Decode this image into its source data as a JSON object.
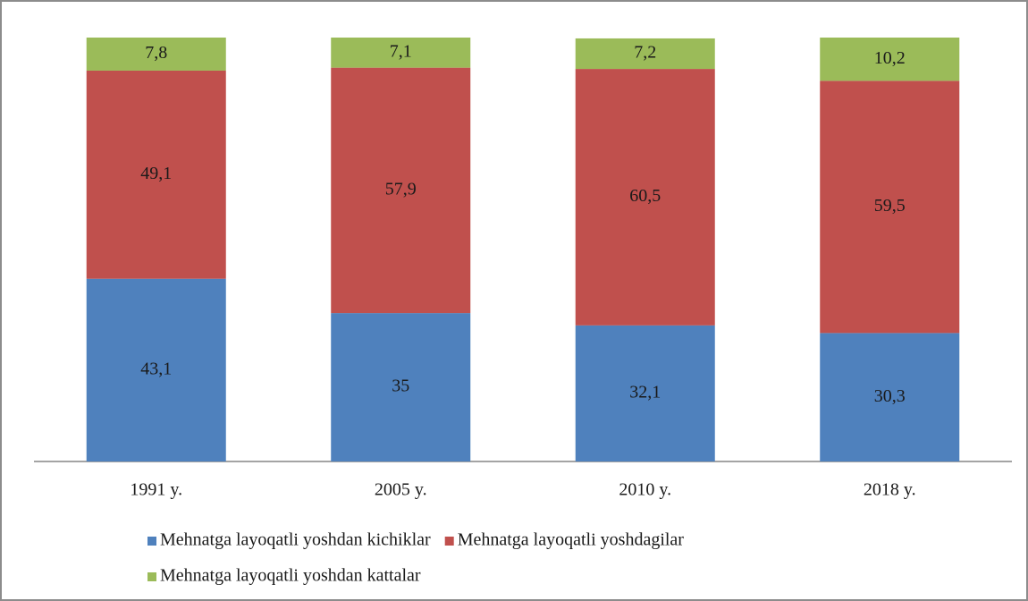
{
  "chart_data": {
    "type": "stacked_bar",
    "categories": [
      "1991 y.",
      "2005 y.",
      "2010 y.",
      "2018 y."
    ],
    "series": [
      {
        "name": "Mehnatga layoqatli yoshdan kichiklar",
        "color": "#4f81bd",
        "values": [
          43.1,
          35,
          32.1,
          30.3
        ],
        "value_labels": [
          "43,1",
          "35",
          "32,1",
          "30,3"
        ]
      },
      {
        "name": "Mehnatga layoqatli yoshdagilar",
        "color": "#c0504d",
        "values": [
          49.1,
          57.9,
          60.5,
          59.5
        ],
        "value_labels": [
          "49,1",
          "57,9",
          "60,5",
          "59,5"
        ]
      },
      {
        "name": "Mehnatga layoqatli yoshdan kattalar",
        "color": "#9bbb59",
        "values": [
          7.8,
          7.1,
          7.2,
          10.2
        ],
        "value_labels": [
          "7,8",
          "7,1",
          "7,2",
          "10,2"
        ]
      }
    ],
    "ylim": [
      0,
      100
    ]
  }
}
